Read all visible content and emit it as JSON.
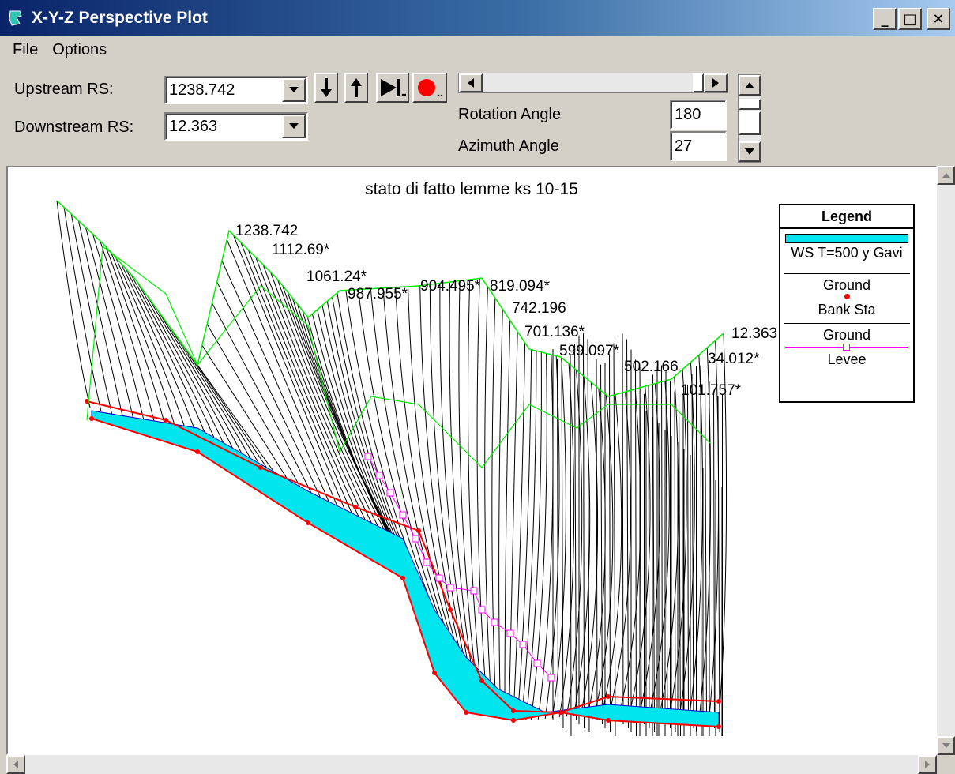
{
  "window": {
    "title": "X-Y-Z Perspective Plot"
  },
  "menu": [
    {
      "label": "File"
    },
    {
      "label": "Options"
    }
  ],
  "controls": {
    "upstream_label": "Upstream RS:",
    "upstream_value": "1238.742",
    "downstream_label": "Downstream RS:",
    "downstream_value": "12.363",
    "rotation_label": "Rotation Angle",
    "rotation_value": "180",
    "azimuth_label": "Azimuth Angle",
    "azimuth_value": "27"
  },
  "plot": {
    "title": "stato di fatto lemme ks 10-15",
    "station_labels": [
      "1238.742",
      "1112.69*",
      "1061.24*",
      "987.955*",
      "904.495*",
      "819.094*",
      "742.196",
      "701.136*",
      "599.097*",
      "502.166",
      "101.757*",
      "34.012*",
      "12.363"
    ],
    "colors": {
      "ground": "#000000",
      "bank": "#ff0000",
      "ws": "#00e5ee",
      "ws_edge": "#0000cc",
      "levee": "#ff00ff",
      "profile": "#00ee00"
    }
  },
  "legend": {
    "title": "Legend",
    "entries": [
      {
        "label": "WS T=500 y Gavi"
      },
      {
        "label": "Ground",
        "sub": "Bank Sta"
      },
      {
        "label": "Ground",
        "sub": "Levee"
      }
    ]
  }
}
